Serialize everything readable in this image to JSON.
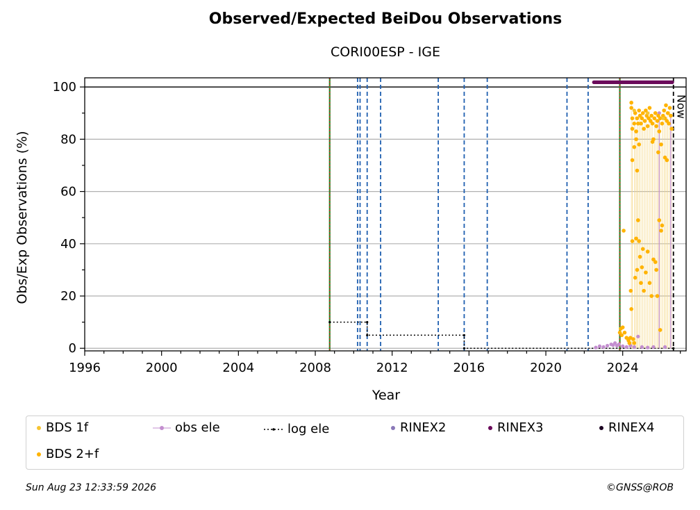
{
  "title": "Observed/Expected BeiDou Observations",
  "subtitle": "CORI00ESP - IGE",
  "footer": {
    "timestamp": "Sun Aug 23 12:33:59 2026",
    "copyright": "©GNSS@ROB"
  },
  "now_label": "Now",
  "chart_data": {
    "type": "scatter",
    "title": "Observed/Expected BeiDou Observations",
    "subtitle": "CORI00ESP - IGE",
    "xlabel": "Year",
    "ylabel": "Obs/Exp Observations (%)",
    "xlim": [
      1996,
      2027.3
    ],
    "ylim": [
      -1,
      103.5
    ],
    "xticks": [
      1996,
      2000,
      2004,
      2008,
      2012,
      2016,
      2020,
      2024
    ],
    "yticks": [
      0,
      20,
      40,
      60,
      80,
      100
    ],
    "grid": "horizontal",
    "legend_position": "bottom",
    "colors": {
      "bds_1f": "#f6c431",
      "bds_2f": "#ffb300",
      "obs_ele": "#c38ecf",
      "log_ele": "#000000",
      "rinex2": "#8a78b8",
      "rinex3": "#6a0a5a",
      "rinex4": "#1a0020",
      "event_line": "#1f5fb0",
      "receiver_line": "#2a8a2a",
      "now_line": "#000000"
    },
    "legend": [
      {
        "key": "bds_1f",
        "label": "BDS 1f",
        "marker": "dot"
      },
      {
        "key": "obs_ele",
        "label": "obs ele",
        "marker": "line-dot"
      },
      {
        "key": "log_ele",
        "label": "log ele",
        "marker": "dotted-line"
      },
      {
        "key": "rinex2",
        "label": "RINEX2",
        "marker": "dot"
      },
      {
        "key": "rinex3",
        "label": "RINEX3",
        "marker": "dot"
      },
      {
        "key": "rinex4",
        "label": "RINEX4",
        "marker": "dot"
      },
      {
        "key": "bds_2f",
        "label": "BDS 2+f",
        "marker": "dot"
      }
    ],
    "reference_line": 100,
    "now": 2026.64,
    "receiver_change_lines": [
      2008.75,
      2023.85
    ],
    "event_lines": [
      2010.2,
      2010.33,
      2010.7,
      2011.4,
      2014.4,
      2015.75,
      2016.95,
      2021.1,
      2022.2
    ],
    "log_ele_steps": [
      {
        "x": 2008.75,
        "y": 10
      },
      {
        "x": 2010.7,
        "y": 10
      },
      {
        "x": 2010.7,
        "y": 5
      },
      {
        "x": 2015.75,
        "y": 5
      },
      {
        "x": 2015.75,
        "y": 0
      },
      {
        "x": 2026.64,
        "y": 0
      }
    ],
    "rinex3_band": {
      "x_start": 2022.5,
      "x_end": 2026.6,
      "y": 101.8
    },
    "bds_2f_points": [
      [
        2023.85,
        6
      ],
      [
        2023.9,
        7.5
      ],
      [
        2023.95,
        5
      ],
      [
        2024.0,
        8
      ],
      [
        2024.05,
        45
      ],
      [
        2024.1,
        6
      ],
      [
        2024.2,
        4
      ],
      [
        2024.3,
        3
      ],
      [
        2024.35,
        2
      ],
      [
        2024.4,
        4
      ],
      [
        2024.42,
        22
      ],
      [
        2024.45,
        15
      ],
      [
        2024.5,
        41
      ],
      [
        2024.55,
        3.5
      ],
      [
        2024.6,
        2
      ],
      [
        2024.65,
        27
      ],
      [
        2024.7,
        42
      ],
      [
        2024.75,
        30
      ],
      [
        2024.8,
        49
      ],
      [
        2024.85,
        41
      ],
      [
        2024.9,
        35
      ],
      [
        2024.95,
        25
      ],
      [
        2025.0,
        31
      ],
      [
        2025.05,
        38
      ],
      [
        2025.1,
        22
      ],
      [
        2025.2,
        29
      ],
      [
        2025.3,
        37
      ],
      [
        2025.4,
        25
      ],
      [
        2025.5,
        20
      ],
      [
        2025.6,
        34
      ],
      [
        2025.7,
        33
      ],
      [
        2025.75,
        30
      ],
      [
        2025.8,
        20
      ],
      [
        2025.9,
        49
      ],
      [
        2025.95,
        7
      ],
      [
        2026.0,
        45
      ],
      [
        2026.05,
        47
      ],
      [
        2026.2,
        73
      ],
      [
        2026.3,
        72
      ],
      [
        2024.45,
        94
      ],
      [
        2024.45,
        92
      ],
      [
        2024.5,
        88
      ],
      [
        2024.5,
        84
      ],
      [
        2024.6,
        86
      ],
      [
        2024.65,
        90
      ],
      [
        2024.7,
        83
      ],
      [
        2024.75,
        88
      ],
      [
        2024.8,
        86
      ],
      [
        2024.85,
        91
      ],
      [
        2024.9,
        89
      ],
      [
        2024.95,
        86
      ],
      [
        2025.0,
        88
      ],
      [
        2025.05,
        90
      ],
      [
        2025.1,
        84
      ],
      [
        2025.15,
        87
      ],
      [
        2025.2,
        91
      ],
      [
        2025.25,
        89
      ],
      [
        2025.3,
        85
      ],
      [
        2025.35,
        88
      ],
      [
        2025.4,
        92
      ],
      [
        2025.45,
        87
      ],
      [
        2025.5,
        89
      ],
      [
        2025.55,
        86
      ],
      [
        2025.6,
        80
      ],
      [
        2025.65,
        88
      ],
      [
        2025.7,
        90
      ],
      [
        2025.75,
        85
      ],
      [
        2025.8,
        87
      ],
      [
        2025.85,
        89
      ],
      [
        2025.9,
        83
      ],
      [
        2025.95,
        88
      ],
      [
        2026.0,
        78
      ],
      [
        2026.05,
        86
      ],
      [
        2026.1,
        89
      ],
      [
        2026.15,
        91
      ],
      [
        2026.2,
        88
      ],
      [
        2026.25,
        93
      ],
      [
        2026.3,
        87
      ],
      [
        2026.35,
        90
      ],
      [
        2026.4,
        86
      ],
      [
        2026.45,
        92
      ],
      [
        2026.5,
        89
      ],
      [
        2026.55,
        84
      ],
      [
        2024.5,
        72
      ],
      [
        2024.6,
        77
      ],
      [
        2024.7,
        80
      ],
      [
        2024.75,
        68
      ],
      [
        2024.85,
        78
      ],
      [
        2025.55,
        79
      ],
      [
        2025.85,
        75
      ]
    ],
    "bds_1f_points": [
      [
        2024.6,
        91
      ],
      [
        2025.3,
        90
      ],
      [
        2026.1,
        88
      ]
    ],
    "obs_ele_points": [
      [
        2022.6,
        0.3
      ],
      [
        2022.8,
        0.8
      ],
      [
        2023.0,
        0.5
      ],
      [
        2023.2,
        1.0
      ],
      [
        2023.4,
        1.5
      ],
      [
        2023.5,
        1.2
      ],
      [
        2023.6,
        2.0
      ],
      [
        2023.7,
        1.0
      ],
      [
        2023.8,
        1.5
      ],
      [
        2024.0,
        0.8
      ],
      [
        2024.2,
        0.5
      ],
      [
        2024.4,
        1.0
      ],
      [
        2024.6,
        0.5
      ],
      [
        2024.8,
        4.5
      ],
      [
        2025.0,
        0.5
      ],
      [
        2025.3,
        0.3
      ],
      [
        2025.6,
        0.5
      ],
      [
        2025.9,
        90
      ],
      [
        2026.2,
        0.5
      ],
      [
        2026.5,
        89
      ]
    ]
  }
}
